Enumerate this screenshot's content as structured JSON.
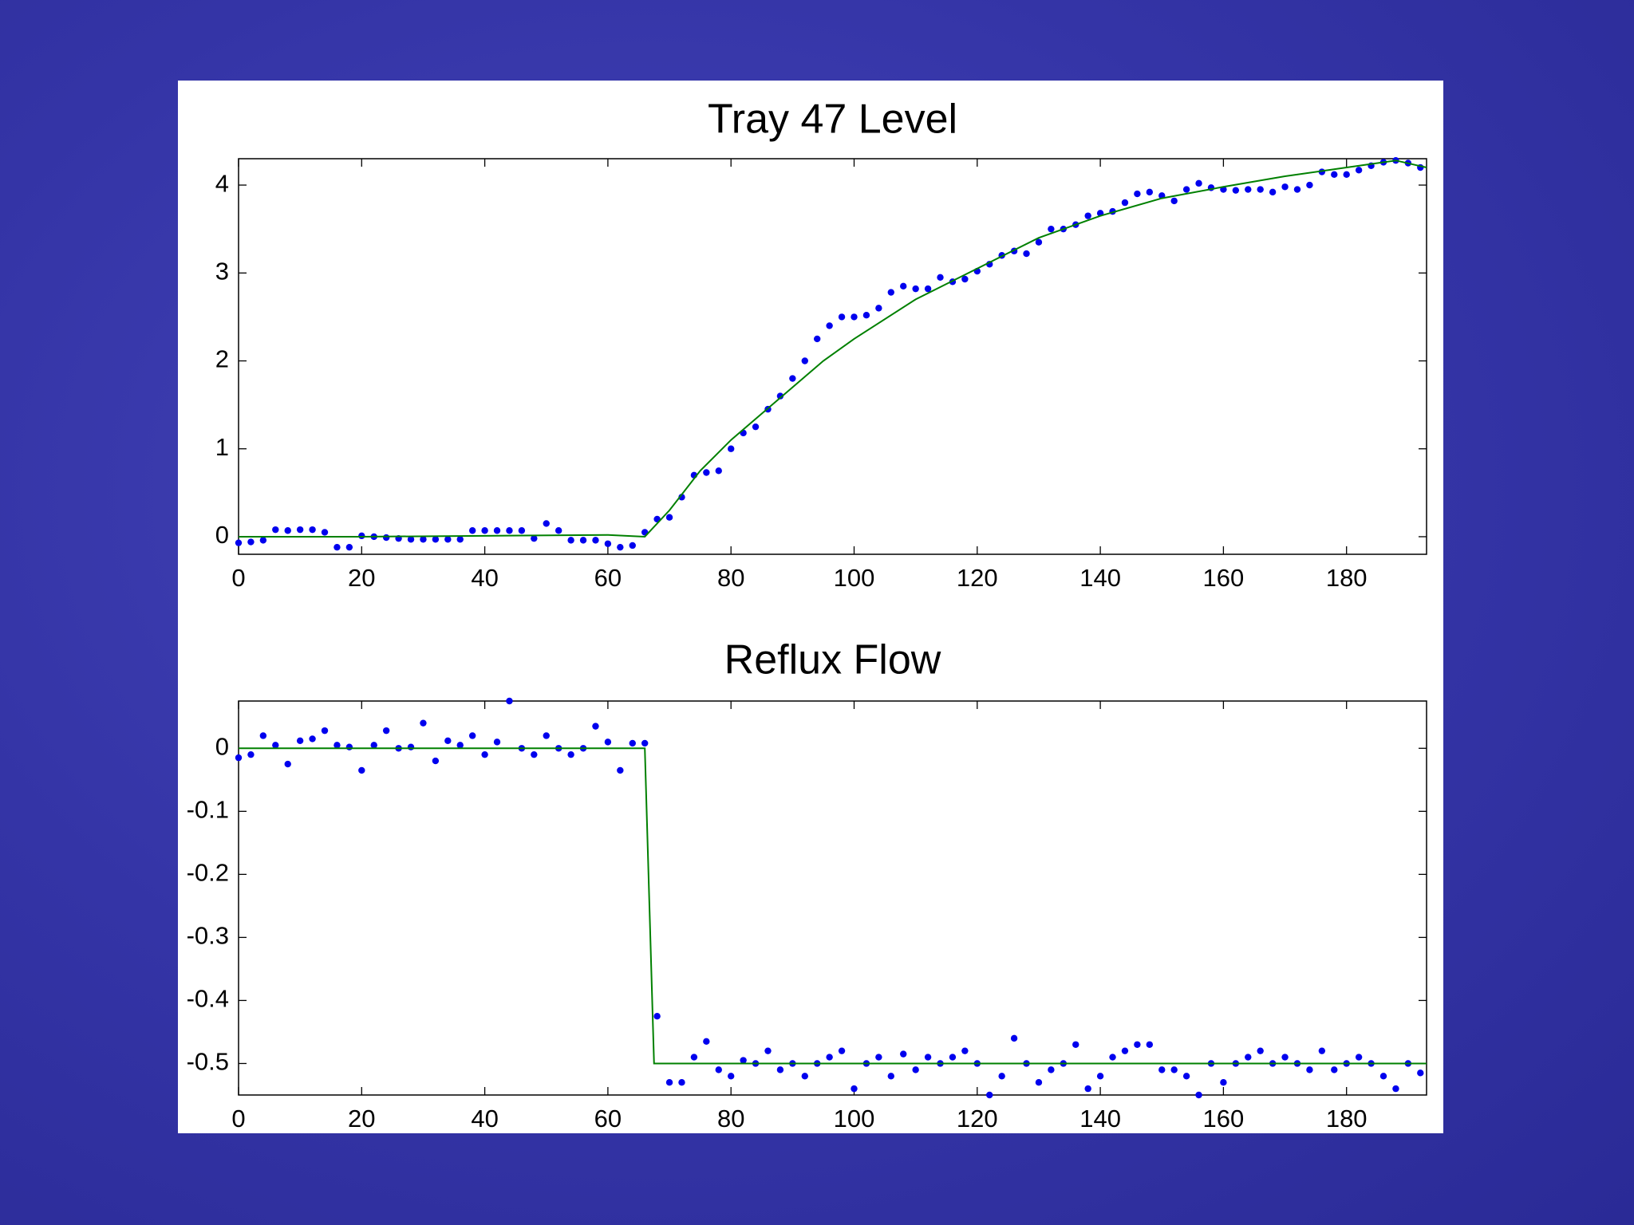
{
  "chart_data": [
    {
      "type": "scatter",
      "title": "Tray 47 Level",
      "xlim": [
        0,
        193
      ],
      "ylim": [
        -0.2,
        4.3
      ],
      "xticks": [
        0,
        20,
        40,
        60,
        80,
        100,
        120,
        140,
        160,
        180
      ],
      "yticks": [
        0,
        1,
        2,
        3,
        4
      ],
      "series": [
        {
          "type": "scatter",
          "color": "#0000ee",
          "x": [
            0,
            2,
            4,
            6,
            8,
            10,
            12,
            14,
            16,
            18,
            20,
            22,
            24,
            26,
            28,
            30,
            32,
            34,
            36,
            38,
            40,
            42,
            44,
            46,
            48,
            50,
            52,
            54,
            56,
            58,
            60,
            62,
            64,
            66,
            68,
            70,
            72,
            74,
            76,
            78,
            80,
            82,
            84,
            86,
            88,
            90,
            92,
            94,
            96,
            98,
            100,
            102,
            104,
            106,
            108,
            110,
            112,
            114,
            116,
            118,
            120,
            122,
            124,
            126,
            128,
            130,
            132,
            134,
            136,
            138,
            140,
            142,
            144,
            146,
            148,
            150,
            152,
            154,
            156,
            158,
            160,
            162,
            164,
            166,
            168,
            170,
            172,
            174,
            176,
            178,
            180,
            182,
            184,
            186,
            188,
            190,
            192
          ],
          "values": [
            -0.07,
            -0.06,
            -0.04,
            0.08,
            0.07,
            0.08,
            0.08,
            0.05,
            -0.12,
            -0.12,
            0.01,
            0,
            -0.01,
            -0.02,
            -0.03,
            -0.03,
            -0.03,
            -0.03,
            -0.03,
            0.07,
            0.07,
            0.07,
            0.07,
            0.07,
            -0.02,
            0.15,
            0.07,
            -0.04,
            -0.04,
            -0.04,
            -0.08,
            -0.12,
            -0.1,
            0.05,
            0.2,
            0.22,
            0.45,
            0.7,
            0.73,
            0.75,
            1.0,
            1.18,
            1.25,
            1.45,
            1.6,
            1.8,
            2.0,
            2.25,
            2.4,
            2.5,
            2.5,
            2.52,
            2.6,
            2.78,
            2.85,
            2.82,
            2.82,
            2.95,
            2.9,
            2.93,
            3.02,
            3.1,
            3.2,
            3.25,
            3.22,
            3.35,
            3.5,
            3.5,
            3.55,
            3.65,
            3.68,
            3.7,
            3.8,
            3.9,
            3.92,
            3.88,
            3.82,
            3.95,
            4.02,
            3.97,
            3.95,
            3.94,
            3.95,
            3.95,
            3.92,
            3.98,
            3.95,
            4.0,
            4.15,
            4.12,
            4.12,
            4.17,
            4.22,
            4.26,
            4.28,
            4.25,
            4.2
          ]
        },
        {
          "type": "line",
          "color": "#008000",
          "x": [
            0,
            20,
            40,
            60,
            66,
            70,
            75,
            80,
            85,
            90,
            95,
            100,
            110,
            120,
            130,
            140,
            150,
            160,
            170,
            180,
            188,
            193
          ],
          "values": [
            0,
            0,
            0.01,
            0.02,
            0,
            0.3,
            0.75,
            1.1,
            1.4,
            1.7,
            2.0,
            2.25,
            2.7,
            3.05,
            3.4,
            3.65,
            3.85,
            3.98,
            4.1,
            4.2,
            4.28,
            4.2
          ]
        }
      ]
    },
    {
      "type": "scatter",
      "title": "Reflux Flow",
      "xlim": [
        0,
        193
      ],
      "ylim": [
        -0.55,
        0.075
      ],
      "xticks": [
        0,
        20,
        40,
        60,
        80,
        100,
        120,
        140,
        160,
        180
      ],
      "yticks": [
        0,
        -0.1,
        -0.2,
        -0.3,
        -0.4,
        -0.5
      ],
      "series": [
        {
          "type": "scatter",
          "color": "#0000ee",
          "x": [
            0,
            2,
            4,
            6,
            8,
            10,
            12,
            14,
            16,
            18,
            20,
            22,
            24,
            26,
            28,
            30,
            32,
            34,
            36,
            38,
            40,
            42,
            44,
            46,
            48,
            50,
            52,
            54,
            56,
            58,
            60,
            62,
            64,
            66,
            68,
            70,
            72,
            74,
            76,
            78,
            80,
            82,
            84,
            86,
            88,
            90,
            92,
            94,
            96,
            98,
            100,
            102,
            104,
            106,
            108,
            110,
            112,
            114,
            116,
            118,
            120,
            122,
            124,
            126,
            128,
            130,
            132,
            134,
            136,
            138,
            140,
            142,
            144,
            146,
            148,
            150,
            152,
            154,
            156,
            158,
            160,
            162,
            164,
            166,
            168,
            170,
            172,
            174,
            176,
            178,
            180,
            182,
            184,
            186,
            188,
            190,
            192
          ],
          "values": [
            -0.015,
            -0.01,
            0.02,
            0.005,
            -0.025,
            0.012,
            0.015,
            0.028,
            0.005,
            0.002,
            -0.035,
            0.005,
            0.028,
            0,
            0.002,
            0.04,
            -0.02,
            0.012,
            0.005,
            0.02,
            -0.01,
            0.01,
            0.075,
            0,
            -0.01,
            0.02,
            0,
            -0.01,
            0,
            0.035,
            0.01,
            -0.035,
            0.008,
            0.008,
            -0.425,
            -0.53,
            -0.53,
            -0.49,
            -0.465,
            -0.51,
            -0.52,
            -0.495,
            -0.5,
            -0.48,
            -0.51,
            -0.5,
            -0.52,
            -0.5,
            -0.49,
            -0.48,
            -0.54,
            -0.5,
            -0.49,
            -0.52,
            -0.485,
            -0.51,
            -0.49,
            -0.5,
            -0.49,
            -0.48,
            -0.5,
            -0.55,
            -0.52,
            -0.46,
            -0.5,
            -0.53,
            -0.51,
            -0.5,
            -0.47,
            -0.54,
            -0.52,
            -0.49,
            -0.48,
            -0.47,
            -0.47,
            -0.51,
            -0.51,
            -0.52,
            -0.55,
            -0.5,
            -0.53,
            -0.5,
            -0.49,
            -0.48,
            -0.5,
            -0.49,
            -0.5,
            -0.51,
            -0.48,
            -0.51,
            -0.5,
            -0.49,
            -0.5,
            -0.52,
            -0.54,
            -0.5,
            -0.515
          ]
        },
        {
          "type": "line",
          "color": "#008000",
          "x": [
            0,
            66,
            67.5,
            193
          ],
          "values": [
            0,
            0,
            -0.5,
            -0.5
          ]
        }
      ]
    }
  ]
}
